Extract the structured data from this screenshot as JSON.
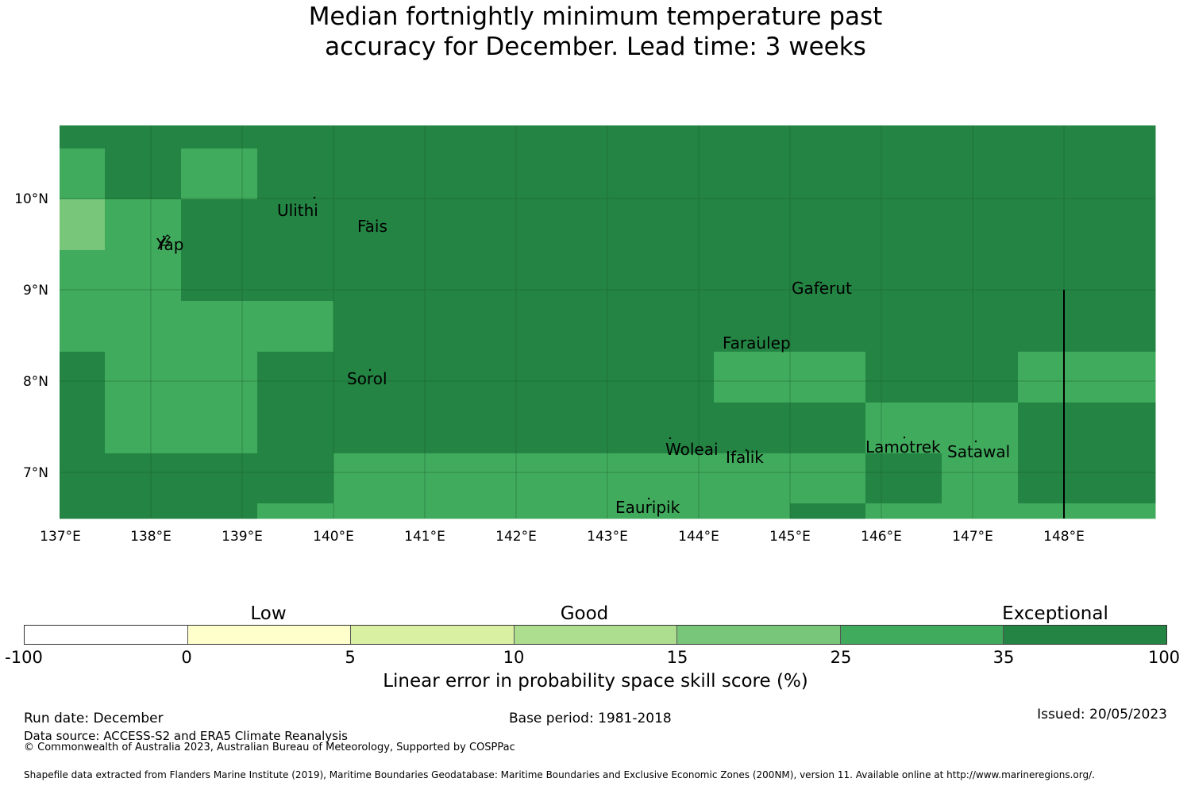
{
  "title_line1": "Median fortnightly minimum temperature past",
  "title_line2": "accuracy for December. Lead time: 3 weeks",
  "map": {
    "lon_ticks": [
      "137°E",
      "138°E",
      "139°E",
      "140°E",
      "141°E",
      "142°E",
      "143°E",
      "144°E",
      "145°E",
      "146°E",
      "147°E",
      "148°E"
    ],
    "lat_ticks": [
      "10°N",
      "9°N",
      "8°N",
      "7°N"
    ],
    "grid_rows": [
      "77777777777777",
      "67677777777777",
      "56777777777777",
      "66777777777777",
      "66667777777777",
      "76677777766776",
      "76677777777667",
      "77776666666767",
      "77766666667666"
    ],
    "places": [
      {
        "name": "Ulithi"
      },
      {
        "name": "Fais"
      },
      {
        "name": "Yap"
      },
      {
        "name": "Gaferut"
      },
      {
        "name": "Faraulep"
      },
      {
        "name": "Sorol"
      },
      {
        "name": "Woleai"
      },
      {
        "name": "Ifalik"
      },
      {
        "name": "Lamotrek"
      },
      {
        "name": "Satawal"
      },
      {
        "name": "Eauripik"
      }
    ]
  },
  "legend": {
    "categories": [
      "Low",
      "Good",
      "Exceptional"
    ],
    "ticks": [
      "-100",
      "0",
      "5",
      "10",
      "15",
      "25",
      "35",
      "100"
    ],
    "colors": [
      "#ffffff",
      "#ffffcc",
      "#d9f0a3",
      "#addd8e",
      "#78c679",
      "#41ab5d",
      "#238443"
    ],
    "axis_title": "Linear error in probability space skill score (%)"
  },
  "footer": {
    "run_date": "Run date: December",
    "base_period": "Base period: 1981-2018",
    "issued": "Issued: 20/05/2023",
    "data_source": "Data source: ACCESS-S2 and ERA5 Climate Reanalysis",
    "copyright": "© Commonwealth of Australia 2023, Australian Bureau of Meteorology, Supported by COSPPac",
    "shapefile": "Shapefile data extracted from Flanders Marine Institute (2019), Maritime Boundaries Geodatabase: Maritime Boundaries and Exclusive Economic Zones (200NM), version 11. Available online at http://www.marineregions.org/."
  }
}
